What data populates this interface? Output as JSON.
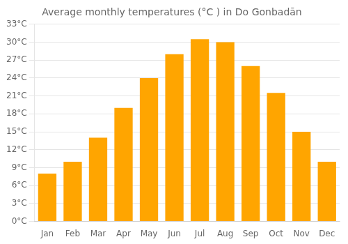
{
  "chart_data": {
    "type": "bar",
    "title": "Average monthly temperatures (°C ) in Do Gonbadān",
    "categories": [
      "Jan",
      "Feb",
      "Mar",
      "Apr",
      "May",
      "Jun",
      "Jul",
      "Aug",
      "Sep",
      "Oct",
      "Nov",
      "Dec"
    ],
    "values": [
      8.0,
      10.0,
      14.0,
      19.0,
      24.0,
      28.0,
      30.5,
      30.0,
      26.0,
      21.5,
      15.0,
      10.0
    ],
    "color": "#FFA500",
    "ylim": [
      0,
      33
    ],
    "yticks": [
      {
        "value": 0,
        "label": "0°C"
      },
      {
        "value": 3,
        "label": "3°C"
      },
      {
        "value": 6,
        "label": "6°C"
      },
      {
        "value": 9,
        "label": "9°C"
      },
      {
        "value": 12,
        "label": "12°C"
      },
      {
        "value": 15,
        "label": "15°C"
      },
      {
        "value": 18,
        "label": "18°C"
      },
      {
        "value": 21,
        "label": "21°C"
      },
      {
        "value": 24,
        "label": "24°C"
      },
      {
        "value": 27,
        "label": "27°C"
      },
      {
        "value": 30,
        "label": "30°C"
      },
      {
        "value": 33,
        "label": "33°C"
      }
    ],
    "grid": true
  }
}
